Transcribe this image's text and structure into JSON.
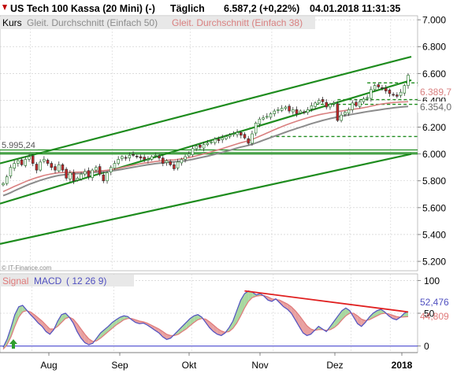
{
  "header": {
    "instrument": "US Tech 100 Kassa (20 Mini) (-)",
    "interval": "Täglich",
    "last_price": "6.587,2 (+0,22%)",
    "datetime": "04.01.2018 11:31:35"
  },
  "legend": {
    "kurs": "Kurs",
    "sma50": "Gleit. Durchschnitt (Einfach 50)",
    "sma38": "Gleit. Durchschnitt (Einfach 38)"
  },
  "colors": {
    "candle_up": "#2e7d32",
    "candle_down": "#c62828",
    "channel": "#1e8c1e",
    "sma50": "#8c8c8c",
    "sma38": "#d98080",
    "grid": "#c8c8c8",
    "macd_fill_up": "#a8d8a0",
    "macd_fill_down": "#e8a0a0",
    "macd_line": "#5050c0",
    "signal_line": "#e07a7a",
    "trend_red": "#e02020"
  },
  "watermark": "© IT-Finance.com",
  "price_labels": {
    "level_5995": "5.995,24",
    "sma38_value": "6.389,7",
    "sma50_value": "6.354,0"
  },
  "macd_panel": {
    "signal_label": "Signal",
    "macd_label": "MACD",
    "params": "( 12 26 9)",
    "macd_value": "52,476",
    "signal_value": "44,809"
  },
  "chart_data": [
    {
      "type": "candlestick",
      "title": "US Tech 100 Kassa (20 Mini) (-)",
      "x_tick_labels": [
        "Aug",
        "Sep",
        "Okt",
        "Nov",
        "Dez",
        "2018"
      ],
      "y_tick_labels": [
        "7.000",
        "6.800",
        "6.600",
        "6.400",
        "6.200",
        "6.000",
        "5.800",
        "5.600",
        "5.400",
        "5.200"
      ],
      "y_ticks": [
        7000,
        6800,
        6600,
        6400,
        6200,
        6000,
        5800,
        5600,
        5400,
        5200
      ],
      "ylim": [
        5130,
        7030
      ],
      "x_range_months": [
        "Jul 2017",
        "Jan 2018"
      ],
      "close_series": [
        5780,
        5830,
        5900,
        5930,
        5950,
        5920,
        5960,
        5980,
        5930,
        5880,
        5940,
        5960,
        5930,
        5900,
        5880,
        5920,
        5880,
        5820,
        5860,
        5800,
        5820,
        5850,
        5870,
        5830,
        5880,
        5900,
        5850,
        5800,
        5860,
        5900,
        5930,
        5960,
        5980,
        5970,
        5990,
        5990,
        5980,
        5970,
        5960,
        5960,
        5980,
        5990,
        5970,
        5930,
        5950,
        5920,
        5890,
        5940,
        5960,
        5980,
        6000,
        6040,
        6060,
        6050,
        6070,
        6080,
        6090,
        6110,
        6100,
        6120,
        6130,
        6140,
        6150,
        6160,
        6140,
        6120,
        6080,
        6150,
        6230,
        6260,
        6270,
        6280,
        6300,
        6320,
        6330,
        6340,
        6350,
        6320,
        6330,
        6300,
        6320,
        6310,
        6330,
        6360,
        6380,
        6400,
        6390,
        6350,
        6370,
        6380,
        6250,
        6290,
        6310,
        6330,
        6380,
        6360,
        6390,
        6410,
        6420,
        6480,
        6510,
        6500,
        6490,
        6470,
        6450,
        6440,
        6430,
        6460,
        6510,
        6587
      ],
      "sma50_series": [
        5690,
        5700,
        5712,
        5725,
        5738,
        5750,
        5762,
        5774,
        5784,
        5794,
        5804,
        5812,
        5820,
        5828,
        5834,
        5840,
        5844,
        5848,
        5850,
        5852,
        5854,
        5856,
        5858,
        5860,
        5862,
        5864,
        5866,
        5868,
        5870,
        5873,
        5877,
        5881,
        5886,
        5891,
        5896,
        5901,
        5906,
        5911,
        5916,
        5920,
        5924,
        5928,
        5931,
        5934,
        5937,
        5940,
        5942,
        5944,
        5947,
        5950,
        5955,
        5960,
        5966,
        5972,
        5978,
        5984,
        5991,
        5998,
        6005,
        6012,
        6020,
        6028,
        6036,
        6044,
        6052,
        6058,
        6064,
        6072,
        6082,
        6092,
        6102,
        6112,
        6122,
        6132,
        6142,
        6152,
        6162,
        6172,
        6181,
        6190,
        6199,
        6208,
        6217,
        6226,
        6234,
        6242,
        6250,
        6257,
        6264,
        6270,
        6276,
        6281,
        6286,
        6291,
        6296,
        6301,
        6306,
        6311,
        6316,
        6320,
        6324,
        6328,
        6332,
        6336,
        6340,
        6344,
        6347,
        6350,
        6352,
        6354
      ],
      "sma38_series": [
        5720,
        5732,
        5745,
        5758,
        5770,
        5782,
        5794,
        5805,
        5815,
        5824,
        5832,
        5840,
        5846,
        5852,
        5856,
        5860,
        5862,
        5864,
        5864,
        5864,
        5865,
        5866,
        5867,
        5868,
        5870,
        5872,
        5874,
        5876,
        5879,
        5883,
        5888,
        5893,
        5899,
        5905,
        5911,
        5917,
        5922,
        5927,
        5932,
        5936,
        5940,
        5944,
        5947,
        5950,
        5953,
        5955,
        5957,
        5960,
        5964,
        5968,
        5973,
        5979,
        5986,
        5993,
        6000,
        6008,
        6016,
        6024,
        6032,
        6040,
        6049,
        6058,
        6067,
        6076,
        6084,
        6091,
        6098,
        6108,
        6120,
        6132,
        6144,
        6156,
        6168,
        6180,
        6192,
        6204,
        6215,
        6225,
        6235,
        6244,
        6253,
        6262,
        6270,
        6278,
        6285,
        6292,
        6298,
        6303,
        6308,
        6312,
        6316,
        6320,
        6324,
        6328,
        6332,
        6336,
        6340,
        6345,
        6350,
        6356,
        6362,
        6368,
        6373,
        6377,
        6380,
        6383,
        6385,
        6387,
        6388,
        6389.7
      ],
      "channel_lines": [
        {
          "name": "upper",
          "from": [
            0,
            5930
          ],
          "to": [
            109,
            6725
          ]
        },
        {
          "name": "middle",
          "from": [
            0,
            5630
          ],
          "to": [
            109,
            6550
          ]
        },
        {
          "name": "lower",
          "from": [
            0,
            5330
          ],
          "to": [
            109,
            6000
          ]
        }
      ],
      "horizontal_levels": [
        6000,
        6010,
        6030
      ],
      "dashed_levels": [
        6130,
        6370,
        6405,
        6530
      ],
      "sma50_last": 6354.0,
      "sma38_last": 6389.7,
      "level_marker": 5995.24
    },
    {
      "type": "line",
      "title": "MACD ( 12 26 9)",
      "y_tick_labels": [
        "100",
        "50",
        "0"
      ],
      "y_ticks": [
        100,
        50,
        0
      ],
      "ylim": [
        -10,
        110
      ],
      "macd_series": [
        -2,
        10,
        28,
        48,
        60,
        62,
        55,
        48,
        42,
        35,
        30,
        22,
        18,
        25,
        38,
        48,
        50,
        44,
        35,
        22,
        12,
        5,
        2,
        4,
        12,
        20,
        25,
        30,
        36,
        40,
        44,
        46,
        45,
        40,
        36,
        34,
        35,
        32,
        28,
        24,
        20,
        14,
        10,
        12,
        18,
        24,
        30,
        36,
        42,
        46,
        48,
        44,
        36,
        28,
        22,
        18,
        16,
        20,
        28,
        38,
        54,
        70,
        80,
        84,
        82,
        78,
        80,
        76,
        70,
        68,
        72,
        66,
        60,
        56,
        50,
        40,
        30,
        20,
        16,
        18,
        24,
        30,
        26,
        22,
        30,
        38,
        46,
        54,
        58,
        54,
        44,
        34,
        30,
        36,
        44,
        50,
        54,
        56,
        52,
        46,
        42,
        40,
        44,
        50,
        52.476
      ],
      "signal_series": [
        -5,
        2,
        14,
        30,
        44,
        52,
        54,
        52,
        48,
        43,
        38,
        32,
        26,
        26,
        30,
        36,
        42,
        44,
        41,
        34,
        26,
        18,
        11,
        7,
        8,
        12,
        17,
        22,
        27,
        32,
        36,
        40,
        42,
        42,
        40,
        38,
        37,
        35,
        32,
        29,
        26,
        22,
        18,
        16,
        16,
        18,
        22,
        26,
        31,
        36,
        40,
        42,
        41,
        37,
        32,
        27,
        23,
        21,
        22,
        27,
        35,
        46,
        58,
        68,
        74,
        76,
        77,
        77,
        75,
        72,
        71,
        70,
        67,
        64,
        60,
        54,
        47,
        39,
        31,
        26,
        24,
        25,
        25,
        24,
        25,
        28,
        33,
        40,
        46,
        50,
        50,
        46,
        41,
        39,
        40,
        43,
        46,
        49,
        50,
        49,
        47,
        45,
        44,
        44.4,
        44.809
      ],
      "trend_line": {
        "from": [
          62,
          84
        ],
        "to": [
          104,
          52
        ]
      },
      "macd_last": 52.476,
      "signal_last": 44.809
    }
  ]
}
